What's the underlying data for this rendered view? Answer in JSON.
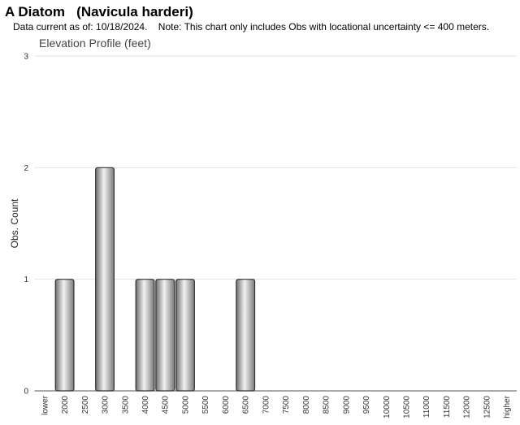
{
  "header": {
    "title": "A Diatom   (Navicula harderi)",
    "subtitle": "Data current as of: 10/18/2024.    Note: This chart only includes Obs with locational uncertainty <= 400 meters."
  },
  "chart_data": {
    "type": "bar",
    "title": "Elevation Profile (feet)",
    "y_label": "Obs. Count",
    "categories": [
      "lower",
      "2000",
      "2500",
      "3000",
      "3500",
      "4000",
      "4500",
      "5000",
      "5500",
      "6000",
      "6500",
      "7000",
      "7500",
      "8000",
      "8500",
      "9000",
      "9500",
      "10000",
      "10500",
      "11000",
      "11500",
      "12000",
      "12500",
      "higher"
    ],
    "values": [
      0,
      1,
      0,
      2,
      0,
      1,
      1,
      1,
      0,
      0,
      1,
      0,
      0,
      0,
      0,
      0,
      0,
      0,
      0,
      0,
      0,
      0,
      0,
      0
    ],
    "color": "#9a9a9a",
    "ylim": [
      0,
      3
    ],
    "yticks": [
      0,
      1,
      2,
      3
    ],
    "grid": true
  }
}
